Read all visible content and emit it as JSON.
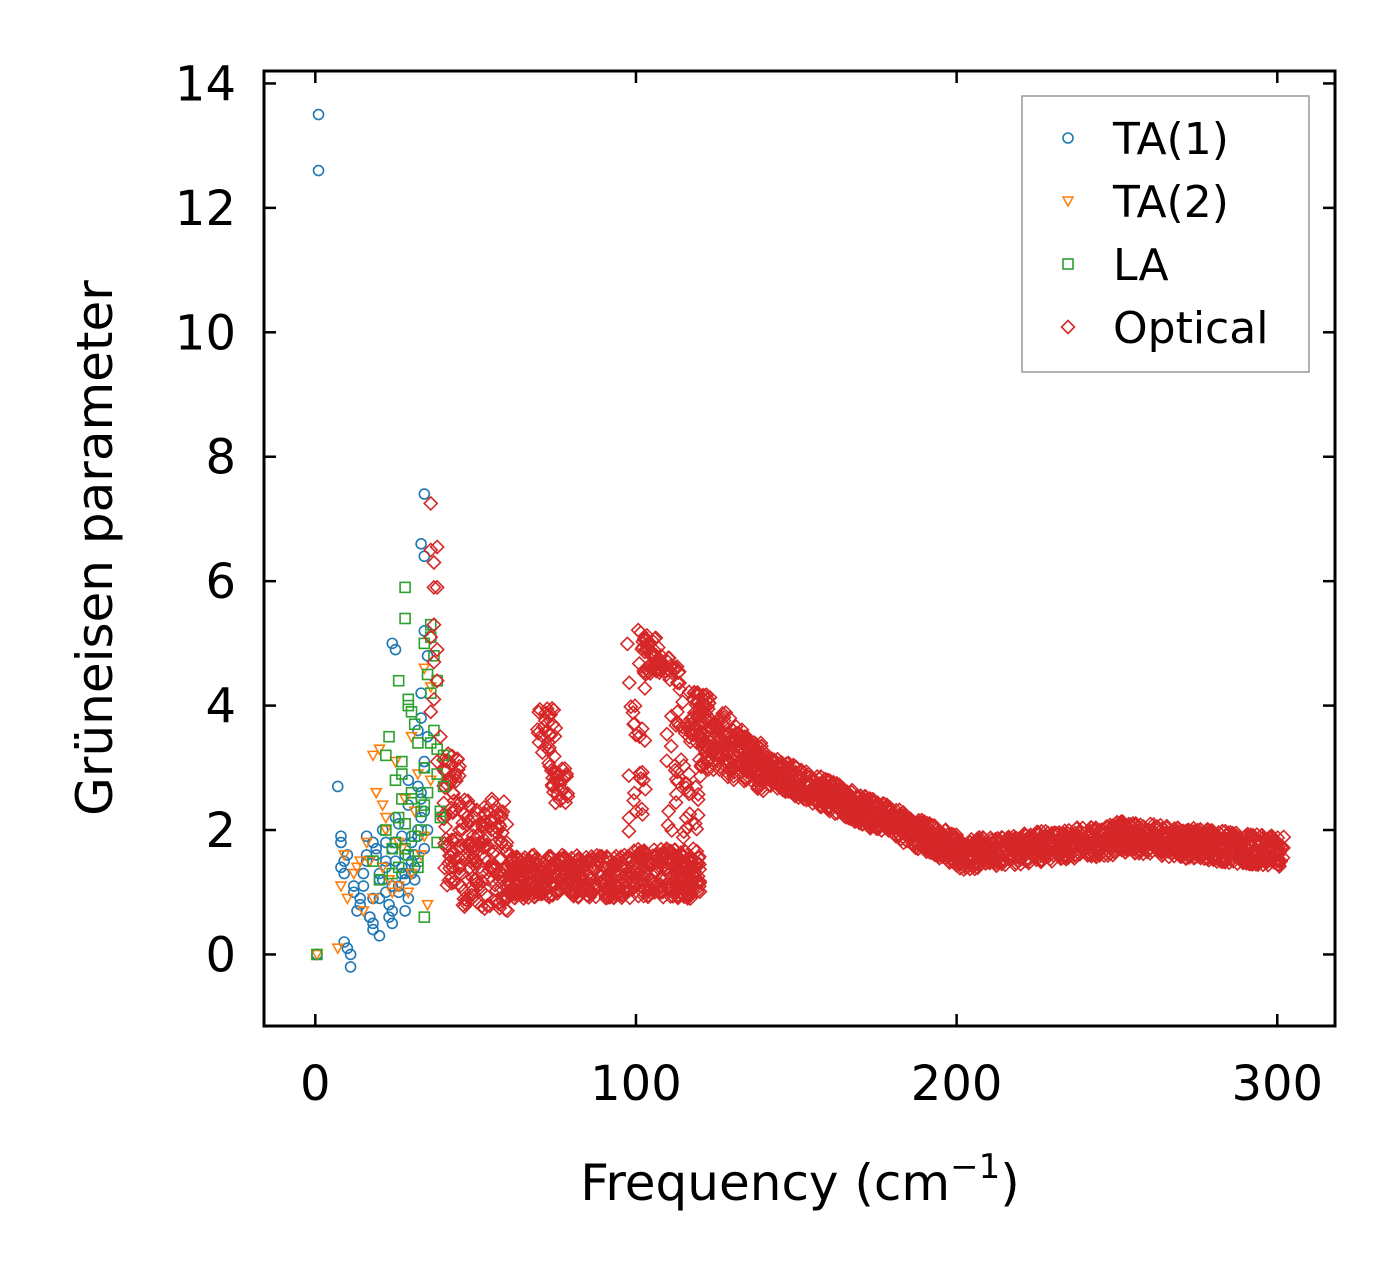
{
  "chart_data": {
    "type": "scatter",
    "title": "",
    "xlabel": "Frequency (cm",
    "xlabel_sup": "−1",
    "xlabel_close": ")",
    "ylabel": "Grüneisen parameter",
    "xlim": [
      -16,
      318
    ],
    "ylim": [
      -1.15,
      14.2
    ],
    "xticks": [
      0,
      100,
      200,
      300
    ],
    "xtick_labels": [
      "0",
      "100",
      "200",
      "300"
    ],
    "yticks": [
      0,
      2,
      4,
      6,
      8,
      10,
      12,
      14
    ],
    "ytick_labels": [
      "0",
      "2",
      "4",
      "6",
      "8",
      "10",
      "12",
      "14"
    ],
    "grid": false,
    "legend_position": "top-right",
    "series": [
      {
        "name": "TA(1)",
        "marker": "circle",
        "color": "#1f77b4",
        "x": [
          1,
          1,
          0.5,
          8,
          8,
          9,
          10,
          12,
          8,
          9,
          11,
          13,
          14,
          15,
          16,
          17,
          18,
          19,
          20,
          21,
          22,
          23,
          24,
          25,
          26,
          27,
          28,
          29,
          30,
          31,
          32,
          33,
          34,
          12,
          14,
          16,
          18,
          20,
          22,
          24,
          26,
          28,
          30,
          32,
          15,
          17,
          19,
          21,
          23,
          25,
          27,
          29,
          31,
          33,
          35,
          18,
          20,
          22,
          24,
          26,
          28,
          30,
          25,
          27,
          29,
          31,
          33,
          16,
          18,
          20,
          22,
          24,
          28,
          30,
          32,
          34,
          34,
          33,
          34,
          34,
          35,
          33,
          32,
          34,
          33,
          35,
          34,
          24,
          25,
          7,
          9,
          11,
          10
        ],
        "y": [
          13.5,
          12.6,
          0,
          1.9,
          1.8,
          1.3,
          1.6,
          1.1,
          1.4,
          0.2,
          -0.2,
          0.7,
          0.9,
          1.3,
          1.5,
          0.6,
          1.8,
          1.7,
          1.2,
          2.0,
          1.5,
          0.6,
          1.1,
          1.8,
          2.1,
          1.3,
          1.6,
          2.4,
          1.9,
          1.2,
          2.7,
          2.2,
          3.1,
          1.0,
          0.8,
          1.9,
          0.5,
          0.9,
          1.4,
          1.7,
          1.0,
          1.3,
          1.8,
          2.0,
          1.1,
          0.6,
          1.6,
          1.2,
          0.8,
          1.5,
          1.9,
          0.9,
          1.4,
          2.6,
          3.5,
          0.4,
          0.3,
          1.0,
          0.5,
          1.1,
          0.7,
          1.3,
          2.2,
          1.4,
          2.8,
          1.6,
          3.8,
          1.6,
          0.9,
          1.3,
          1.8,
          0.7,
          1.2,
          1.5,
          1.9,
          2.3,
          7.4,
          6.6,
          6.4,
          5.2,
          4.8,
          4.2,
          3.6,
          3.0,
          2.5,
          2.0,
          1.7,
          5.0,
          4.9,
          2.7,
          1.5,
          0.0,
          0.1
        ]
      },
      {
        "name": "TA(2)",
        "marker": "triangle_down",
        "color": "#ff7f0e",
        "x": [
          0.5,
          7,
          8,
          9,
          10,
          12,
          14,
          16,
          18,
          19,
          20,
          21,
          22,
          24,
          26,
          28,
          30,
          32,
          34,
          36,
          18,
          22,
          26,
          30,
          34,
          36,
          35,
          33,
          31,
          29,
          27,
          25,
          23,
          21,
          17,
          15,
          13
        ],
        "y": [
          0,
          0.1,
          1.1,
          1.6,
          0.9,
          1.3,
          1.5,
          1.8,
          3.2,
          2.6,
          3.3,
          1.4,
          2.2,
          1.0,
          1.8,
          2.5,
          1.3,
          2.9,
          4.6,
          4.3,
          0.9,
          2.0,
          1.1,
          3.5,
          1.9,
          2.8,
          0.8,
          1.6,
          2.3,
          1.0,
          1.7,
          3.1,
          1.2,
          2.4,
          1.5,
          0.7,
          1.4
        ]
      },
      {
        "name": "LA",
        "marker": "square",
        "color": "#2ca02c",
        "x": [
          0.5,
          18,
          20,
          22,
          23,
          24,
          25,
          26,
          27,
          28,
          29,
          30,
          31,
          32,
          33,
          34,
          35,
          36,
          37,
          38,
          39,
          40,
          28,
          30,
          32,
          34,
          36,
          38,
          40,
          24,
          26,
          28,
          30,
          32,
          34,
          36,
          38,
          22,
          25,
          27,
          29,
          31,
          33,
          35,
          37,
          39,
          34,
          36,
          38,
          28,
          29,
          27,
          26
        ],
        "y": [
          0,
          1.5,
          1.2,
          2.0,
          3.5,
          1.3,
          2.8,
          2.2,
          3.1,
          1.7,
          4.1,
          2.6,
          1.9,
          3.4,
          2.3,
          0.6,
          4.5,
          5.3,
          3.6,
          2.9,
          2.2,
          3.2,
          5.9,
          2.5,
          1.4,
          3.0,
          4.2,
          1.8,
          2.7,
          1.7,
          4.4,
          2.1,
          3.9,
          1.5,
          2.4,
          5.1,
          3.3,
          3.2,
          1.8,
          2.9,
          1.6,
          3.7,
          2.0,
          2.6,
          4.8,
          2.3,
          5.0,
          3.4,
          4.4,
          5.4,
          4.0,
          2.5,
          1.4
        ]
      },
      {
        "name": "Optical",
        "marker": "diamond",
        "color": "#d62728",
        "x": [
          36,
          36,
          38,
          37,
          37,
          38,
          37,
          36,
          38,
          37,
          38,
          37,
          36,
          39,
          38
        ],
        "y": [
          7.25,
          6.5,
          6.55,
          6.3,
          5.9,
          5.9,
          5.3,
          5.1,
          4.9,
          4.7,
          4.4,
          4.1,
          3.9,
          3.5,
          3.1
        ]
      }
    ]
  }
}
